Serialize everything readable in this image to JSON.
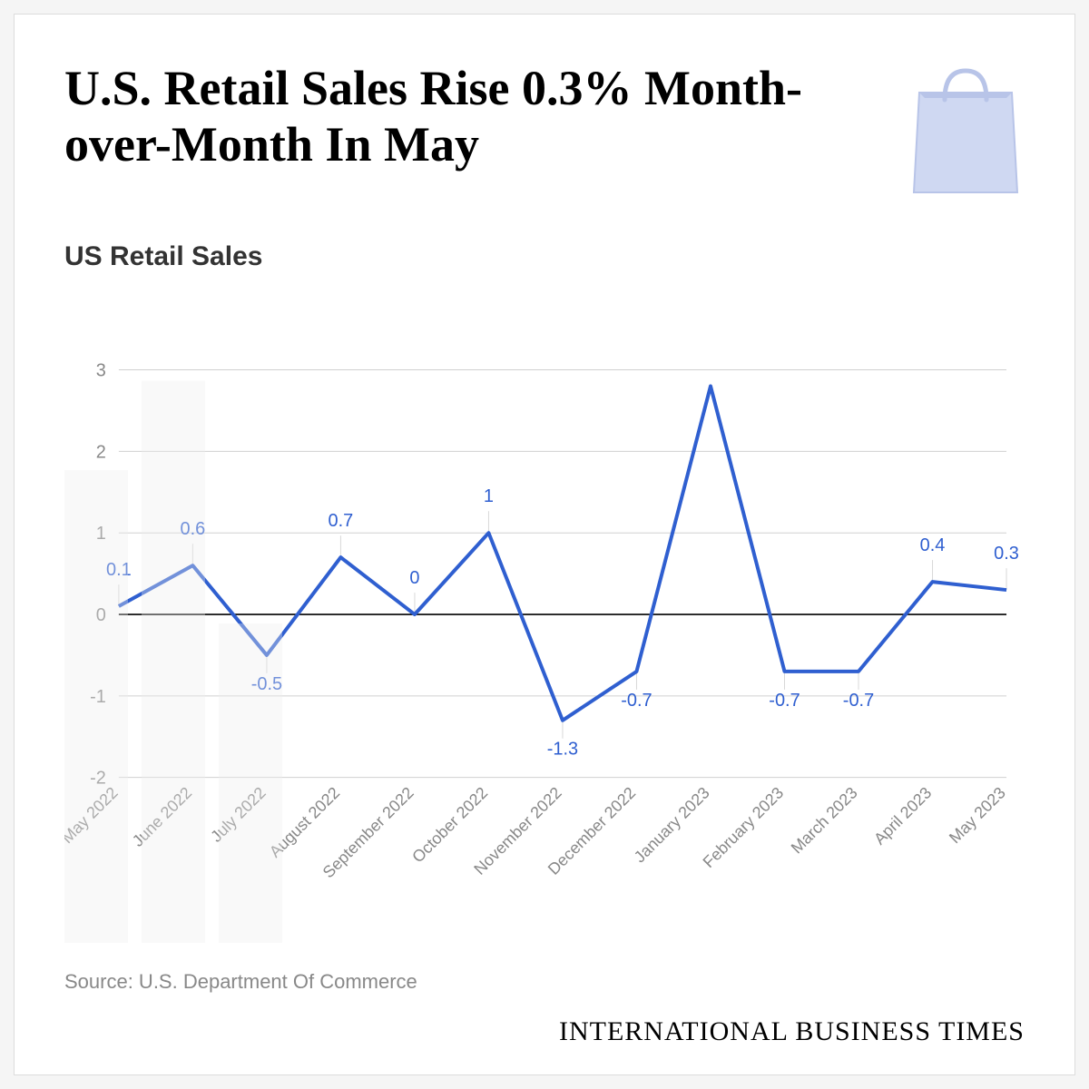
{
  "header": {
    "title": "U.S. Retail Sales Rise 0.3% Month-over-Month In May"
  },
  "chart": {
    "type": "line",
    "subtitle": "US Retail Sales",
    "categories": [
      "May 2022",
      "June 2022",
      "July 2022",
      "August 2022",
      "September 2022",
      "October 2022",
      "November 2022",
      "December 2022",
      "January 2023",
      "February 2023",
      "March 2023",
      "April 2023",
      "May 2023"
    ],
    "values": [
      0.1,
      0.6,
      -0.5,
      0.7,
      0,
      1,
      -1.3,
      -0.7,
      2.8,
      -0.7,
      -0.7,
      0.4,
      0.3
    ],
    "value_labels": [
      "0.1",
      "0.6",
      "-0.5",
      "0.7",
      "0",
      "1",
      "-1.3",
      "-0.7",
      "",
      "-0.7",
      "-0.7",
      "0.4",
      "0.3"
    ],
    "ylim": [
      -2,
      3
    ],
    "yticks": [
      -2,
      -1,
      0,
      1,
      2,
      3
    ],
    "line_color": "#2f5fd0",
    "label_color": "#2f5fd0",
    "grid_color": "#d0d0d0",
    "zero_line_color": "#000000",
    "tick_text_color": "#888888",
    "axis_label_color": "#888888",
    "background_color": "#ffffff",
    "line_width": 4,
    "label_fontsize": 20,
    "ytick_fontsize": 20,
    "xtick_fontsize": 18,
    "xtick_rotation": 45
  },
  "source": "Source: U.S. Department Of Commerce",
  "brand": "INTERNATIONAL BUSINESS TIMES",
  "icon": {
    "name": "shopping-bag",
    "fill": "#cfd8f2",
    "stroke": "#b8c4e8"
  }
}
